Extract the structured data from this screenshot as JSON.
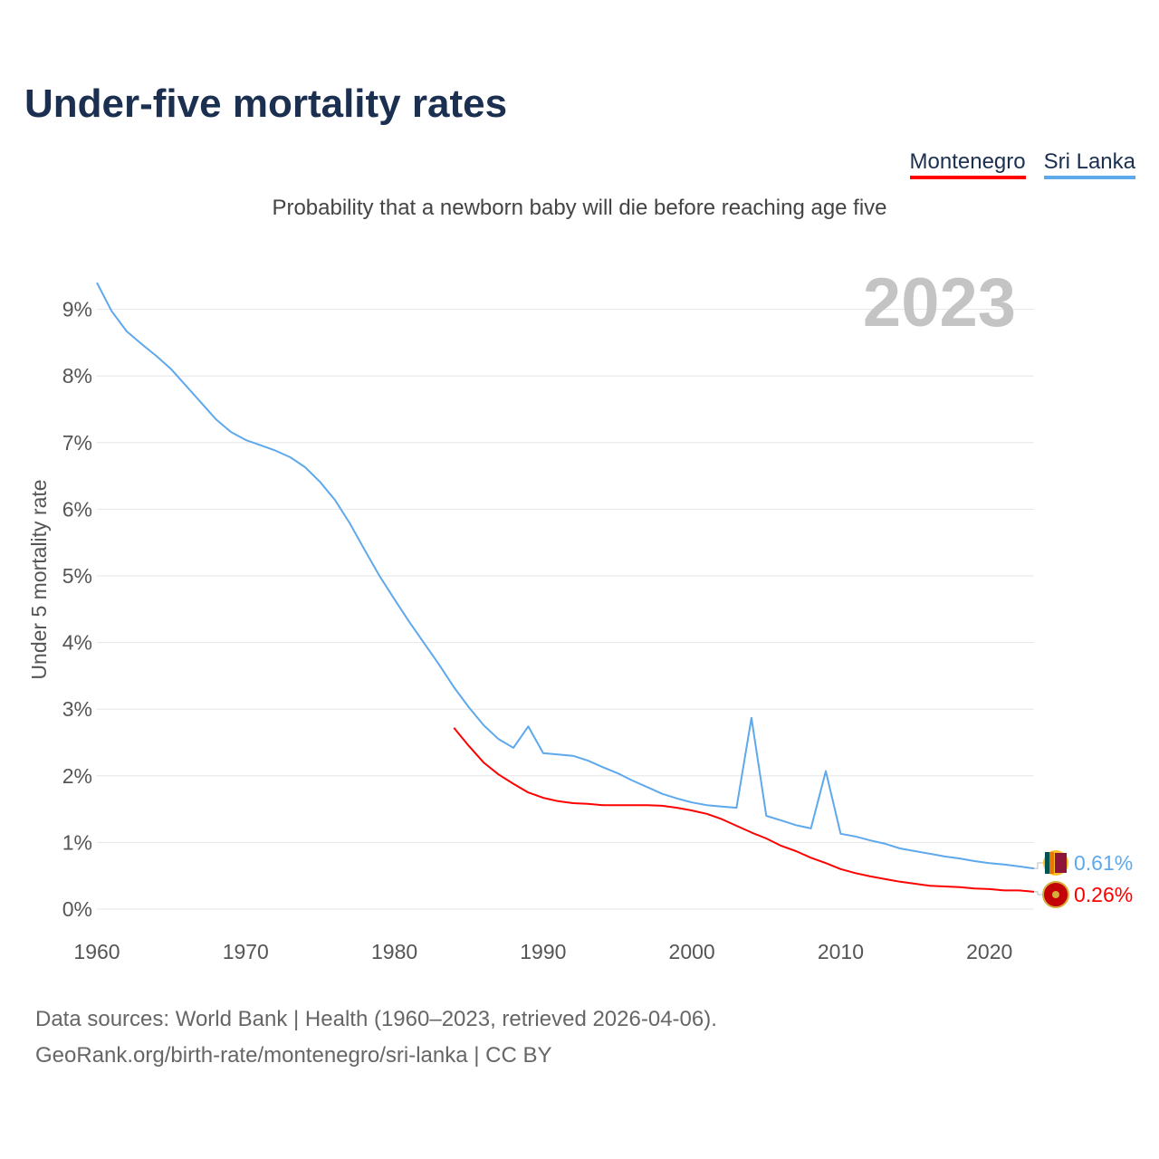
{
  "title": "Under-five mortality rates",
  "subtitle": "Probability that a newborn baby will die before reaching age five",
  "legend": [
    {
      "name": "Montenegro",
      "color": "#ff0000"
    },
    {
      "name": "Sri Lanka",
      "color": "#5ea8ec"
    }
  ],
  "year_label": "2023",
  "sources": {
    "line1": "Data sources: World Bank | Health (1960–2023, retrieved 2026-04-06).",
    "line2": "GeoRank.org/birth-rate/montenegro/sri-lanka | CC BY"
  },
  "chart_data": {
    "type": "line",
    "title": "Under-five mortality rates",
    "xlabel": "",
    "ylabel": "Under 5 mortality rate",
    "xlim": [
      1960,
      2023
    ],
    "ylim": [
      0,
      9.4
    ],
    "xticks": [
      1960,
      1970,
      1980,
      1990,
      2000,
      2010,
      2020
    ],
    "yticks": [
      0,
      1,
      2,
      3,
      4,
      5,
      6,
      7,
      8,
      9
    ],
    "ytick_labels": [
      "0%",
      "1%",
      "2%",
      "3%",
      "4%",
      "5%",
      "6%",
      "7%",
      "8%",
      "9%"
    ],
    "grid": true,
    "legend_position": "top-right",
    "series": [
      {
        "name": "Sri Lanka",
        "color": "#5ea8ec",
        "end_label": "0.61%",
        "x_start": 1960,
        "values": [
          9.4,
          8.97,
          8.67,
          8.48,
          8.3,
          8.1,
          7.85,
          7.6,
          7.35,
          7.16,
          7.04,
          6.96,
          6.88,
          6.78,
          6.63,
          6.41,
          6.14,
          5.79,
          5.39,
          5.0,
          4.65,
          4.31,
          3.99,
          3.67,
          3.33,
          3.03,
          2.76,
          2.55,
          2.42,
          2.74,
          2.34,
          2.32,
          2.3,
          2.23,
          2.13,
          2.04,
          1.93,
          1.83,
          1.73,
          1.66,
          1.6,
          1.56,
          1.54,
          1.52,
          2.87,
          1.4,
          1.33,
          1.26,
          1.21,
          2.07,
          1.13,
          1.09,
          1.03,
          0.98,
          0.91,
          0.87,
          0.83,
          0.79,
          0.76,
          0.72,
          0.69,
          0.67,
          0.64,
          0.61
        ]
      },
      {
        "name": "Montenegro",
        "color": "#ff0000",
        "end_label": "0.26%",
        "x_start": 1984,
        "values": [
          2.72,
          2.45,
          2.2,
          2.02,
          1.88,
          1.75,
          1.67,
          1.62,
          1.59,
          1.58,
          1.56,
          1.56,
          1.56,
          1.56,
          1.55,
          1.52,
          1.48,
          1.43,
          1.35,
          1.25,
          1.15,
          1.06,
          0.95,
          0.87,
          0.77,
          0.69,
          0.6,
          0.54,
          0.49,
          0.45,
          0.41,
          0.38,
          0.35,
          0.34,
          0.33,
          0.31,
          0.3,
          0.28,
          0.28,
          0.26
        ]
      }
    ]
  }
}
